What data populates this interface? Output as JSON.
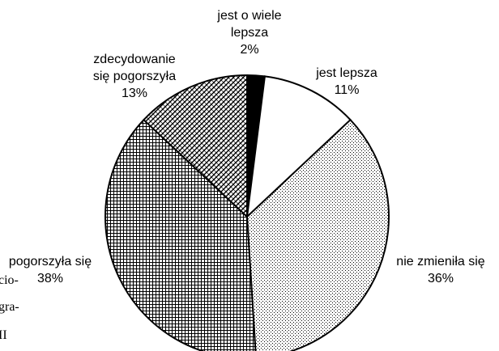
{
  "chart_data": {
    "type": "pie",
    "categories": [
      "jest o wiele lepsza",
      "jest lepsza",
      "nie zmieniła się",
      "pogorszyła się",
      "zdecydowanie się pogorszyła"
    ],
    "values": [
      2,
      11,
      36,
      38,
      13
    ],
    "value_labels": [
      "2%",
      "11%",
      "36%",
      "38%",
      "13%"
    ],
    "label_lines": [
      [
        "jest o wiele",
        "lepsza"
      ],
      [
        "jest lepsza"
      ],
      [
        "nie zmieniła się"
      ],
      [
        "pogorszyła się"
      ],
      [
        "zdecydowanie",
        "się pogorszyła"
      ]
    ],
    "fills": [
      "solid-black",
      "white",
      "fine-dots",
      "grid",
      "diagonal-crosshatch"
    ],
    "start_angle_deg": 0,
    "direction": "clockwise",
    "legend": "none"
  },
  "margin_text": [
    "cio-",
    "gra-",
    "II"
  ]
}
